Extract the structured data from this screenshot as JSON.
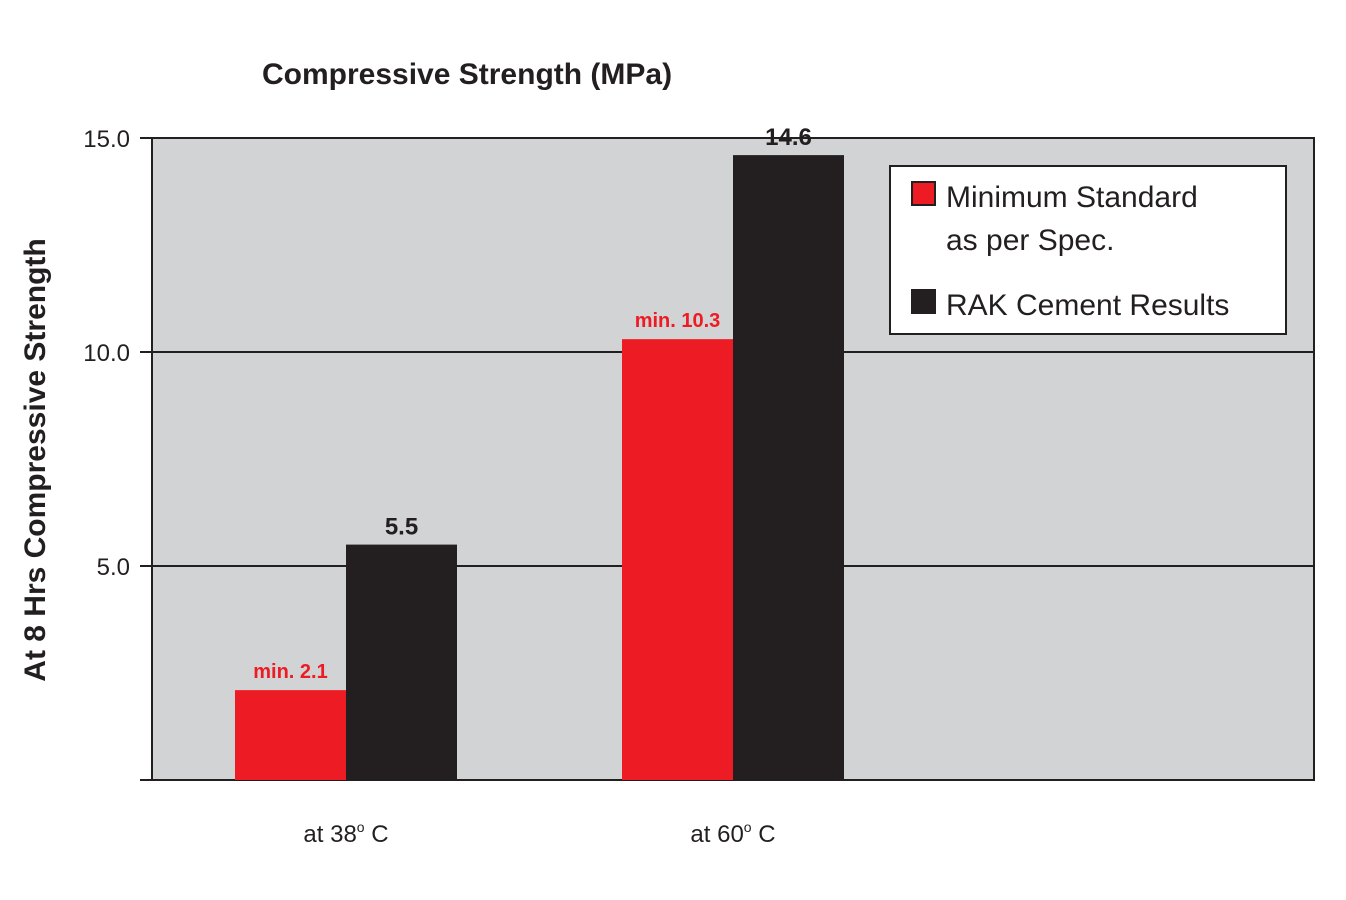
{
  "chart_data": {
    "type": "bar",
    "title": "Compressive Strength (MPa)",
    "ylabel": "At 8 Hrs Compressive Strength",
    "xlabel": "",
    "categories": [
      "at 38º C",
      "at 60º C"
    ],
    "category_parts": [
      {
        "before": "at 38",
        "sup": "o",
        "after": " C"
      },
      {
        "before": "at 60",
        "sup": "o",
        "after": " C"
      }
    ],
    "series": [
      {
        "name": "Minimum Standard as per Spec.",
        "legend_lines": [
          "Minimum Standard",
          "as per Spec."
        ],
        "values": [
          2.1,
          10.3
        ],
        "labels": [
          "min. 2.1",
          "min. 10.3"
        ],
        "color": "#ed1c24"
      },
      {
        "name": "RAK Cement Results",
        "legend_lines": [
          "RAK Cement Results"
        ],
        "values": [
          5.5,
          14.6
        ],
        "labels": [
          "5.5",
          "14.6"
        ],
        "color": "#231f20"
      }
    ],
    "ylim": [
      0,
      15
    ],
    "yticks": [
      "5.0",
      "10.0",
      "15.0"
    ],
    "grid": true,
    "legend_position": "top-right",
    "plot_background": "#d1d3d4"
  }
}
